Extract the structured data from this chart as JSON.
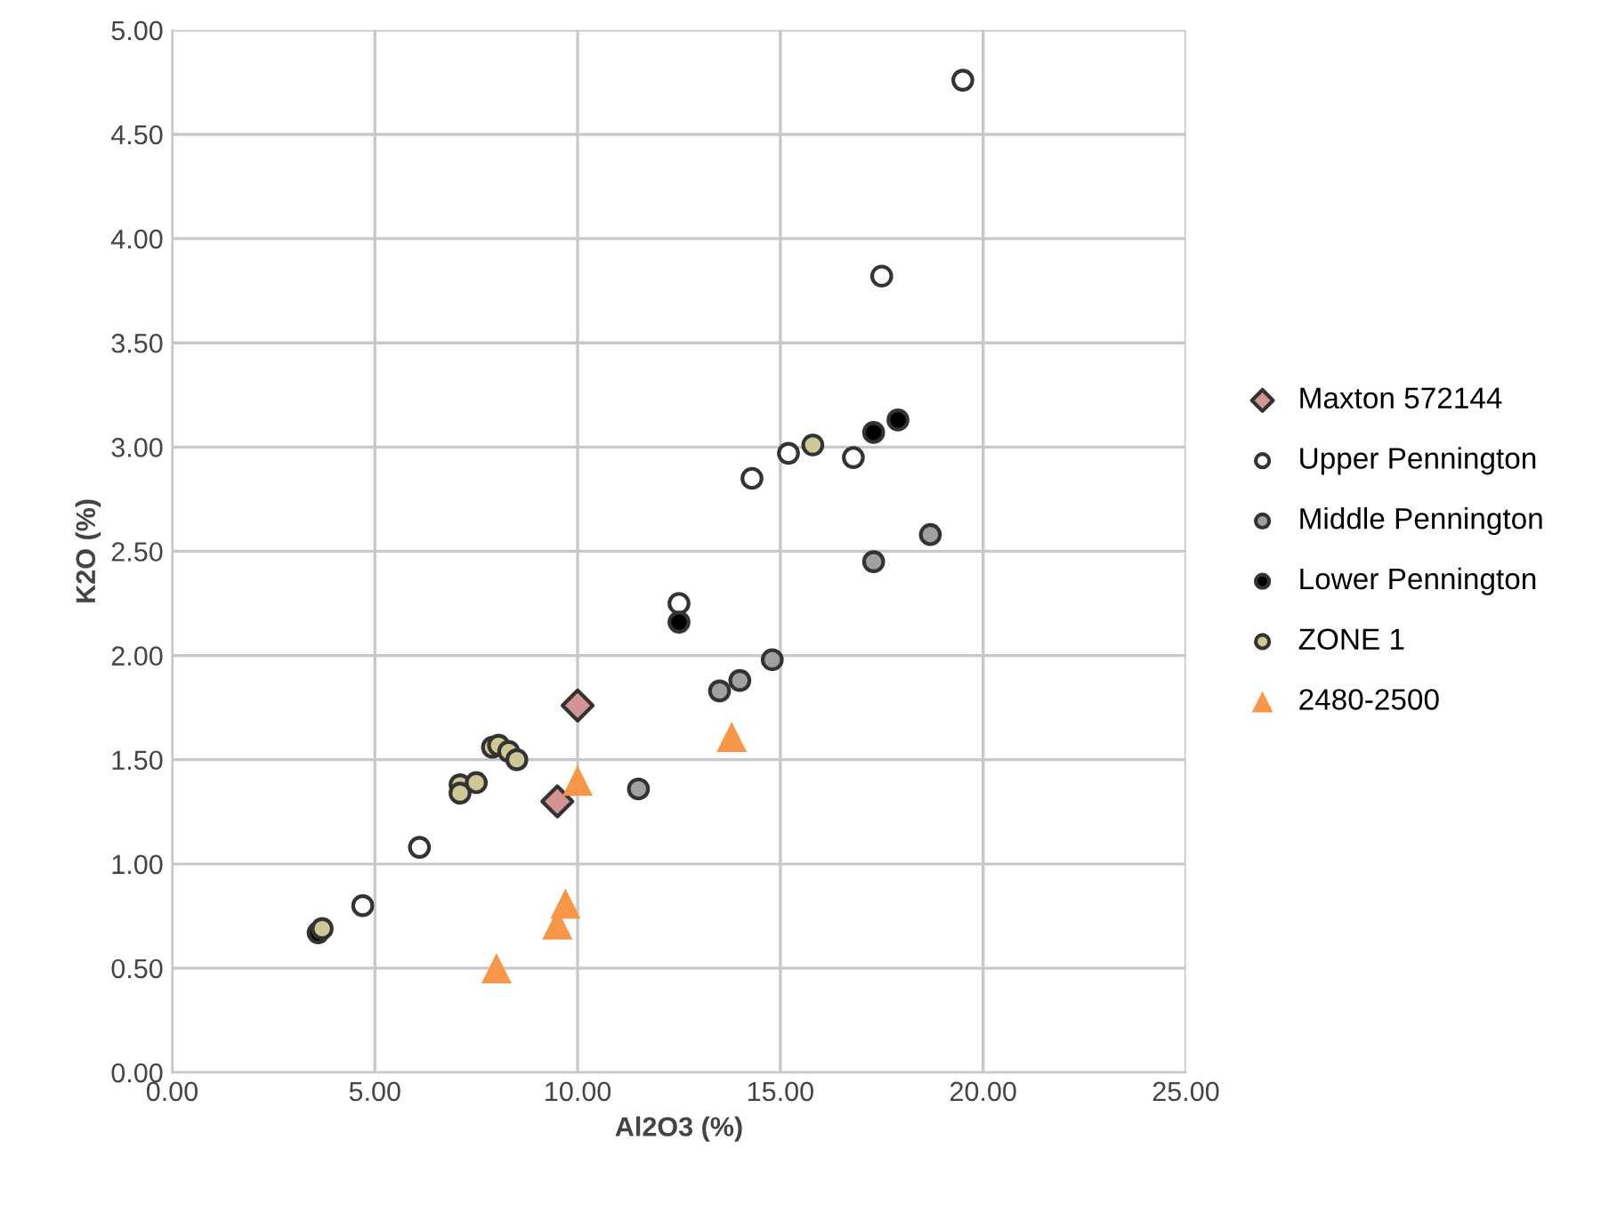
{
  "chart_data": {
    "type": "scatter",
    "xlabel": "Al2O3 (%)",
    "ylabel": "K2O (%)",
    "xlim": [
      0,
      25
    ],
    "xticks": [
      {
        "value": 0,
        "label": "0.00"
      },
      {
        "value": 5,
        "label": "5.00"
      },
      {
        "value": 10,
        "label": "10.00"
      },
      {
        "value": 15,
        "label": "15.00"
      },
      {
        "value": 20,
        "label": "20.00"
      },
      {
        "value": 25,
        "label": "25.00"
      }
    ],
    "ylim": [
      0,
      5
    ],
    "yticks": [
      {
        "value": 0,
        "label": "0.00"
      },
      {
        "value": 0.5,
        "label": "0.50"
      },
      {
        "value": 1,
        "label": "1.00"
      },
      {
        "value": 1.5,
        "label": "1.50"
      },
      {
        "value": 2,
        "label": "2.00"
      },
      {
        "value": 2.5,
        "label": "2.50"
      },
      {
        "value": 3,
        "label": "3.00"
      },
      {
        "value": 3.5,
        "label": "3.50"
      },
      {
        "value": 4,
        "label": "4.00"
      },
      {
        "value": 4.5,
        "label": "4.50"
      },
      {
        "value": 5,
        "label": "5.00"
      }
    ],
    "grid": true,
    "legend": "right",
    "series": [
      {
        "name": "Maxton 572144",
        "color": "#d49494",
        "marker": "diamond",
        "x": [
          10.0,
          9.5
        ],
        "values": [
          1.76,
          1.3
        ]
      },
      {
        "name": "Upper Pennington",
        "color": "#ffffff",
        "marker": "circle",
        "x": [
          19.5,
          17.5,
          15.2,
          16.8,
          14.3,
          12.5,
          6.1,
          4.7
        ],
        "values": [
          4.76,
          3.82,
          2.97,
          2.95,
          2.85,
          2.25,
          1.08,
          0.8
        ]
      },
      {
        "name": "Middle Pennington",
        "color": "#a0a0a0",
        "marker": "circle",
        "x": [
          18.7,
          17.3,
          14.8,
          14.0,
          13.5,
          11.5
        ],
        "values": [
          2.58,
          2.45,
          1.98,
          1.88,
          1.83,
          1.36
        ]
      },
      {
        "name": "Lower Pennington",
        "color": "#000000",
        "marker": "circle",
        "x": [
          17.9,
          17.3,
          12.5,
          3.6
        ],
        "values": [
          3.13,
          3.07,
          2.16,
          0.67
        ]
      },
      {
        "name": "ZONE 1",
        "color": "#cfc796",
        "marker": "circle",
        "x": [
          15.8,
          7.9,
          8.05,
          8.3,
          8.5,
          7.1,
          7.5,
          7.1,
          3.7
        ],
        "values": [
          3.01,
          1.56,
          1.57,
          1.54,
          1.5,
          1.38,
          1.39,
          1.34,
          0.69
        ]
      },
      {
        "name": "2480-2500",
        "color": "#f79646",
        "marker": "triangle",
        "x": [
          13.8,
          10.0,
          9.7,
          9.5,
          8.0
        ],
        "values": [
          1.61,
          1.4,
          0.81,
          0.71,
          0.5
        ]
      }
    ]
  }
}
